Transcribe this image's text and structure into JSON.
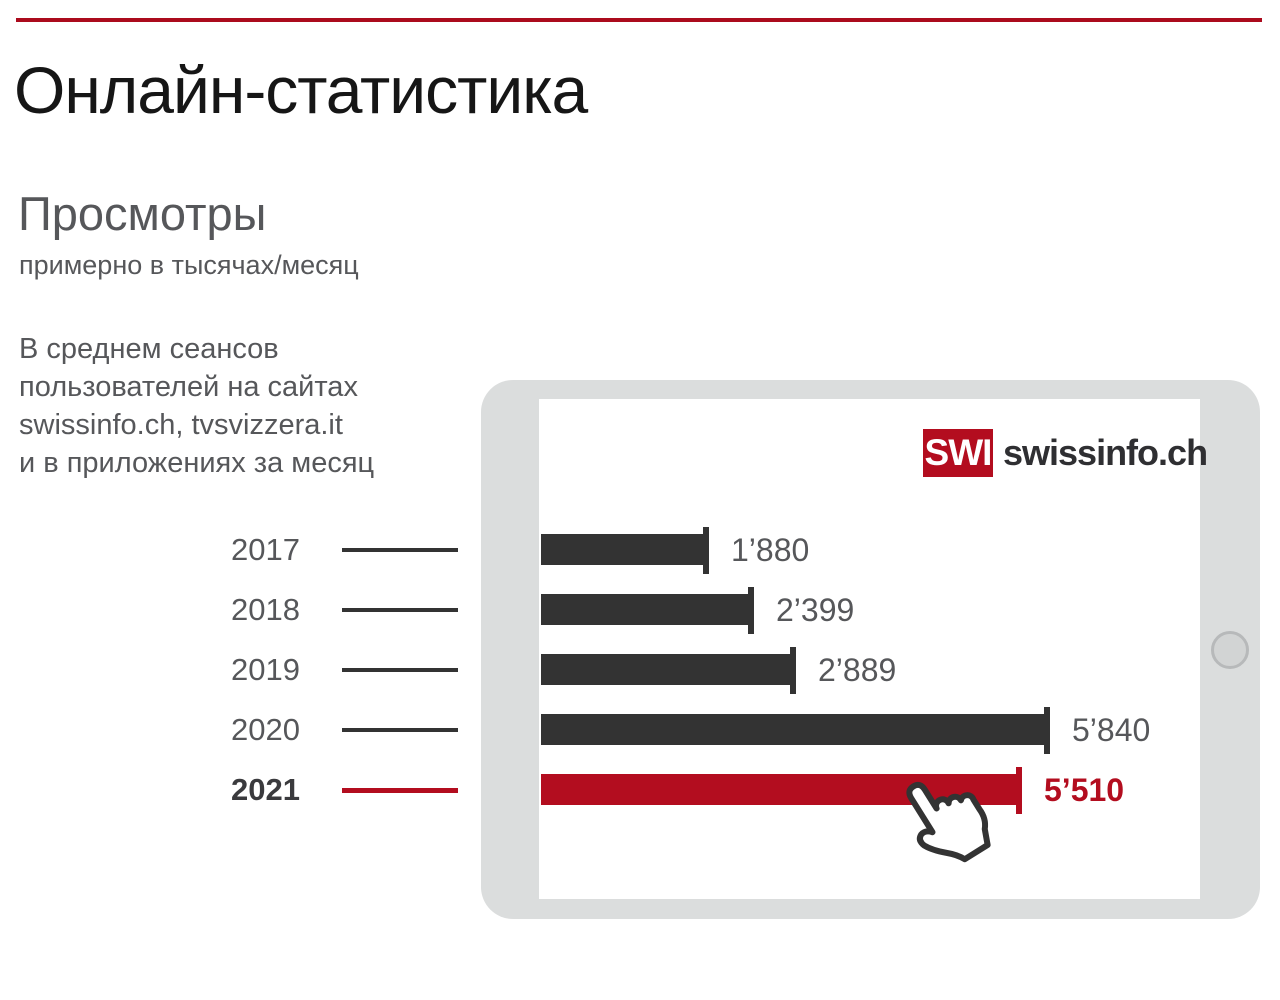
{
  "header": {
    "title": "Онлайн-статистика"
  },
  "section": {
    "title": "Просмотры",
    "subtitle": "примерно в тысячах/месяц",
    "description": "В среднем сеансов\nпользователей на сайтах\nswissinfo.ch, tvsvizzera.it\nи в приложениях за месяц"
  },
  "logo": {
    "mark": "SWI",
    "text": "swissinfo.ch"
  },
  "colors": {
    "accent_red": "#b30d1f",
    "bar_dark": "#333333",
    "text_grey": "#56575a",
    "title_black": "#161616",
    "tablet_frame_grey": "#dbdddd"
  },
  "chart_data": {
    "type": "bar",
    "orientation": "horizontal",
    "title": "Просмотры",
    "subtitle": "примерно в тысячах/месяц",
    "categories": [
      "2017",
      "2018",
      "2019",
      "2020",
      "2021"
    ],
    "values": [
      1880,
      2399,
      2889,
      5840,
      5510
    ],
    "value_labels": [
      "1’880",
      "2’399",
      "2’889",
      "5’840",
      "5’510"
    ],
    "highlight_category": "2021",
    "highlight_color": "#b30d1f",
    "bar_color": "#333333",
    "xlabel": "",
    "ylabel": "",
    "axis": "none",
    "grid": false,
    "legend": "none"
  }
}
